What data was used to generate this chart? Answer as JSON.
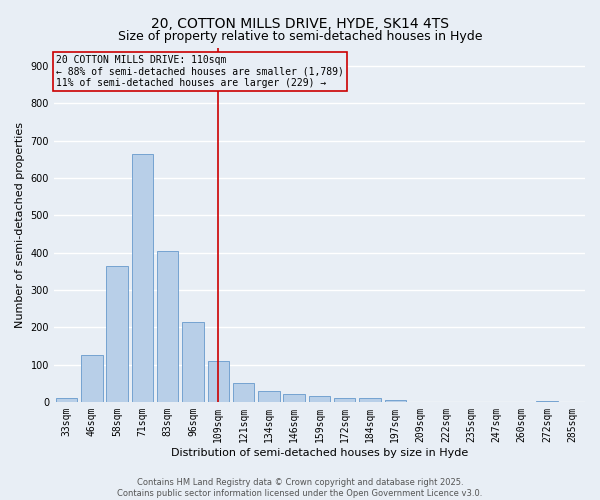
{
  "title1": "20, COTTON MILLS DRIVE, HYDE, SK14 4TS",
  "title2": "Size of property relative to semi-detached houses in Hyde",
  "xlabel": "Distribution of semi-detached houses by size in Hyde",
  "ylabel": "Number of semi-detached properties",
  "categories": [
    "33sqm",
    "46sqm",
    "58sqm",
    "71sqm",
    "83sqm",
    "96sqm",
    "109sqm",
    "121sqm",
    "134sqm",
    "146sqm",
    "159sqm",
    "172sqm",
    "184sqm",
    "197sqm",
    "209sqm",
    "222sqm",
    "235sqm",
    "247sqm",
    "260sqm",
    "272sqm",
    "285sqm"
  ],
  "values": [
    10,
    125,
    365,
    665,
    405,
    215,
    110,
    50,
    30,
    20,
    15,
    10,
    10,
    5,
    0,
    0,
    0,
    0,
    0,
    3,
    0
  ],
  "bar_color": "#b8cfe8",
  "bar_edgecolor": "#6699cc",
  "background_color": "#e8eef5",
  "grid_color": "#ffffff",
  "vline_x_idx": 6,
  "vline_color": "#cc0000",
  "annotation_line1": "20 COTTON MILLS DRIVE: 110sqm",
  "annotation_line2": "← 88% of semi-detached houses are smaller (1,789)",
  "annotation_line3": "11% of semi-detached houses are larger (229) →",
  "annotation_box_edgecolor": "#cc0000",
  "ylim": [
    0,
    950
  ],
  "yticks": [
    0,
    100,
    200,
    300,
    400,
    500,
    600,
    700,
    800,
    900
  ],
  "title_fontsize": 10,
  "subtitle_fontsize": 9,
  "axis_fontsize": 8,
  "tick_fontsize": 7,
  "annot_fontsize": 7,
  "footer_fontsize": 6,
  "footer_text": "Contains HM Land Registry data © Crown copyright and database right 2025.\nContains public sector information licensed under the Open Government Licence v3.0."
}
